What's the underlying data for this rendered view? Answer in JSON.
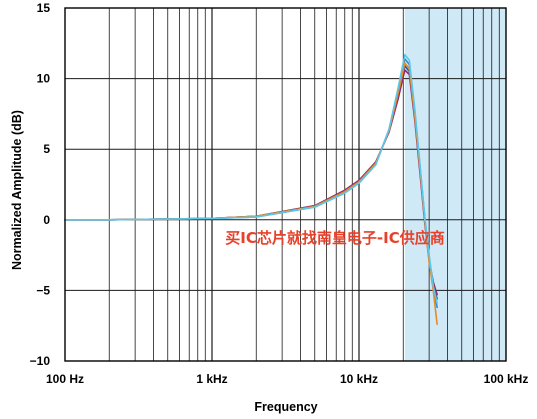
{
  "chart_data": {
    "type": "line",
    "xscale": "log",
    "xlim": [
      100,
      100000
    ],
    "ylim": [
      -10,
      15
    ],
    "ylabel": "Normalized Amplitude (dB)",
    "xlabel": "Frequency",
    "x_tick_labels": [
      {
        "value": 100,
        "label": "100 Hz"
      },
      {
        "value": 1000,
        "label": "1 kHz"
      },
      {
        "value": 10000,
        "label": "10 kHz"
      },
      {
        "value": 100000,
        "label": "100 kHz"
      }
    ],
    "y_ticks": [
      -10,
      -5,
      0,
      5,
      10,
      15
    ],
    "grid": true,
    "highlight_band": {
      "x_start": 20500,
      "x_end": 100000,
      "color": "#cfe9f7"
    },
    "watermark": "买IC芯片就找南皇电子-IC供应商",
    "series": [
      {
        "color": "#1f5fa8",
        "points": [
          [
            100,
            0
          ],
          [
            200,
            0
          ],
          [
            500,
            0.05
          ],
          [
            1000,
            0.1
          ],
          [
            2000,
            0.25
          ],
          [
            5000,
            1.0
          ],
          [
            8000,
            2.0
          ],
          [
            10000,
            2.7
          ],
          [
            13000,
            4.0
          ],
          [
            16000,
            6.3
          ],
          [
            18500,
            8.8
          ],
          [
            20500,
            10.9
          ],
          [
            22000,
            10.5
          ],
          [
            24000,
            7.2
          ],
          [
            26000,
            3.5
          ],
          [
            28000,
            0
          ],
          [
            30000,
            -2.8
          ],
          [
            32000,
            -4.6
          ],
          [
            34000,
            -5.6
          ]
        ]
      },
      {
        "color": "#2a8fd0",
        "points": [
          [
            100,
            0
          ],
          [
            200,
            0
          ],
          [
            500,
            0.05
          ],
          [
            1000,
            0.1
          ],
          [
            2000,
            0.2
          ],
          [
            5000,
            0.9
          ],
          [
            8000,
            1.9
          ],
          [
            10000,
            2.6
          ],
          [
            13000,
            3.9
          ],
          [
            16000,
            6.4
          ],
          [
            18500,
            9.2
          ],
          [
            20500,
            11.4
          ],
          [
            22000,
            11.0
          ],
          [
            24000,
            7.6
          ],
          [
            26000,
            3.8
          ],
          [
            28000,
            0.2
          ],
          [
            30000,
            -2.6
          ],
          [
            32000,
            -4.8
          ],
          [
            34000,
            -6.2
          ]
        ]
      },
      {
        "color": "#8a2f6e",
        "points": [
          [
            100,
            0
          ],
          [
            200,
            0
          ],
          [
            500,
            0.05
          ],
          [
            1000,
            0.1
          ],
          [
            2000,
            0.25
          ],
          [
            5000,
            1.0
          ],
          [
            8000,
            2.1
          ],
          [
            10000,
            2.8
          ],
          [
            13000,
            4.1
          ],
          [
            16000,
            6.2
          ],
          [
            18500,
            8.6
          ],
          [
            20500,
            10.6
          ],
          [
            22000,
            10.3
          ],
          [
            24000,
            7.0
          ],
          [
            26000,
            3.3
          ],
          [
            28000,
            -0.2
          ],
          [
            30000,
            -2.9
          ],
          [
            32000,
            -4.4
          ],
          [
            34000,
            -5.3
          ]
        ]
      },
      {
        "color": "#e58a2a",
        "points": [
          [
            100,
            0
          ],
          [
            200,
            0
          ],
          [
            500,
            0.05
          ],
          [
            1000,
            0.1
          ],
          [
            2000,
            0.25
          ],
          [
            5000,
            0.95
          ],
          [
            8000,
            2.0
          ],
          [
            10000,
            2.7
          ],
          [
            13000,
            4.0
          ],
          [
            16000,
            6.3
          ],
          [
            18500,
            9.0
          ],
          [
            20500,
            11.1
          ],
          [
            22000,
            10.7
          ],
          [
            24000,
            7.3
          ],
          [
            26000,
            3.6
          ],
          [
            28000,
            0
          ],
          [
            30000,
            -3.0
          ],
          [
            32000,
            -5.0
          ],
          [
            34000,
            -7.4
          ]
        ]
      },
      {
        "color": "#5cc7e6",
        "points": [
          [
            100,
            0
          ],
          [
            200,
            0
          ],
          [
            500,
            0.05
          ],
          [
            1000,
            0.1
          ],
          [
            2000,
            0.2
          ],
          [
            5000,
            0.9
          ],
          [
            8000,
            1.9
          ],
          [
            10000,
            2.6
          ],
          [
            13000,
            3.9
          ],
          [
            16000,
            6.4
          ],
          [
            18500,
            9.4
          ],
          [
            20500,
            11.7
          ],
          [
            22000,
            11.3
          ],
          [
            24000,
            7.8
          ],
          [
            26000,
            3.9
          ],
          [
            28000,
            0.2
          ],
          [
            30000,
            -2.5
          ],
          [
            32000,
            -4.7
          ],
          [
            34000,
            -5.9
          ]
        ]
      }
    ]
  }
}
